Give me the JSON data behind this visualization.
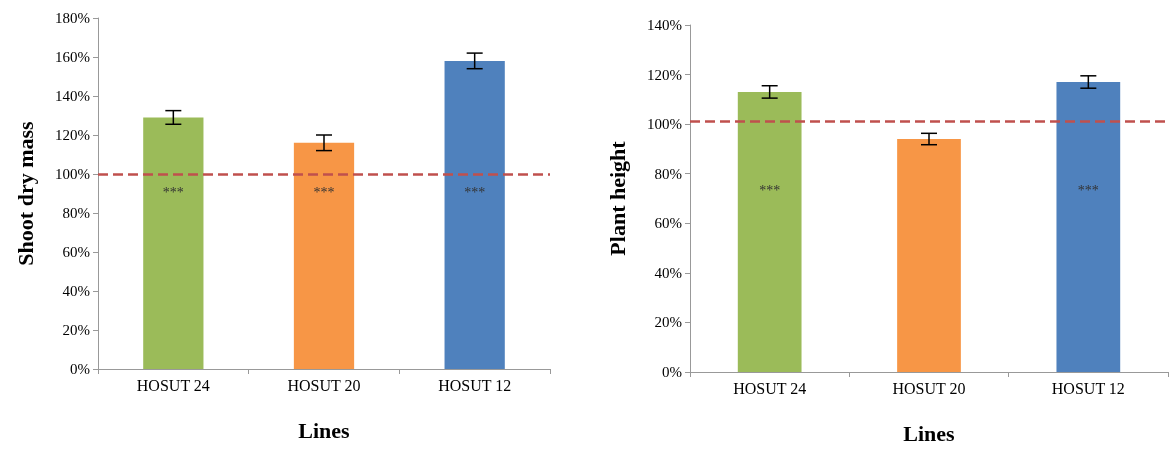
{
  "chart_data": [
    {
      "type": "bar",
      "xlabel": "Lines",
      "ylabel": "Shoot dry mass",
      "categories": [
        "HOSUT 24",
        "HOSUT 20",
        "HOSUT 12"
      ],
      "values": [
        129,
        116,
        158
      ],
      "colors": [
        "#9bbb59",
        "#f79646",
        "#4f81bd"
      ],
      "errors": [
        3.5,
        4,
        4
      ],
      "ylim": [
        0,
        180
      ],
      "yticks": [
        {
          "value": 0,
          "label": "0%"
        },
        {
          "value": 20,
          "label": "20%"
        },
        {
          "value": 40,
          "label": "40%"
        },
        {
          "value": 60,
          "label": "60%"
        },
        {
          "value": 80,
          "label": "80%"
        },
        {
          "value": 100,
          "label": "100%"
        },
        {
          "value": 120,
          "label": "120%"
        },
        {
          "value": 140,
          "label": "140%"
        },
        {
          "value": 160,
          "label": "160%"
        },
        {
          "value": 180,
          "label": "180%"
        }
      ],
      "grid": false,
      "ref_lines": [
        {
          "axis": "y",
          "value": 100,
          "color": "#c0504d",
          "line_style": "dashed"
        }
      ],
      "value_labels": [
        "***",
        "***",
        "***"
      ]
    },
    {
      "type": "bar",
      "xlabel": "Lines",
      "ylabel": "Plant height",
      "categories": [
        "HOSUT 24",
        "HOSUT 20",
        "HOSUT 12"
      ],
      "values": [
        113,
        94,
        117
      ],
      "colors": [
        "#9bbb59",
        "#f79646",
        "#4f81bd"
      ],
      "errors": [
        2.5,
        2.3,
        2.5
      ],
      "ylim": [
        0,
        140
      ],
      "yticks": [
        {
          "value": 0,
          "label": "0%"
        },
        {
          "value": 20,
          "label": "20%"
        },
        {
          "value": 40,
          "label": "40%"
        },
        {
          "value": 60,
          "label": "60%"
        },
        {
          "value": 80,
          "label": "80%"
        },
        {
          "value": 100,
          "label": "100%"
        },
        {
          "value": 120,
          "label": "120%"
        },
        {
          "value": 140,
          "label": "140%"
        }
      ],
      "grid": false,
      "ref_lines": [
        {
          "axis": "y",
          "value": 101,
          "color": "#c0504d",
          "line_style": "dashed"
        }
      ],
      "value_labels": [
        "***",
        null,
        "***"
      ]
    }
  ]
}
